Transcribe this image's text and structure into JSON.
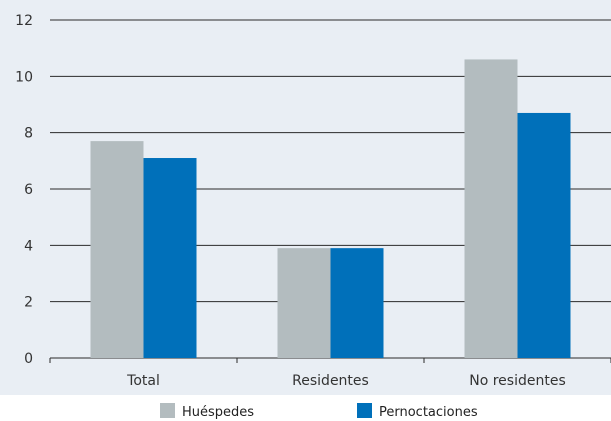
{
  "chart_data": {
    "type": "bar",
    "title": "",
    "xlabel": "",
    "ylabel": "",
    "categories": [
      "Total",
      "Residentes",
      "No residentes"
    ],
    "series": [
      {
        "name": "Huéspedes",
        "color": "#b3bcbf",
        "values": [
          7.7,
          3.9,
          10.6
        ]
      },
      {
        "name": "Pernoctaciones",
        "color": "#0070ba",
        "values": [
          7.1,
          3.9,
          8.7
        ]
      }
    ],
    "ylim": [
      0,
      12
    ],
    "yticks": [
      "0",
      "2",
      "4",
      "6",
      "8",
      "10",
      "12"
    ],
    "grid": true,
    "legend_position": "bottom"
  }
}
